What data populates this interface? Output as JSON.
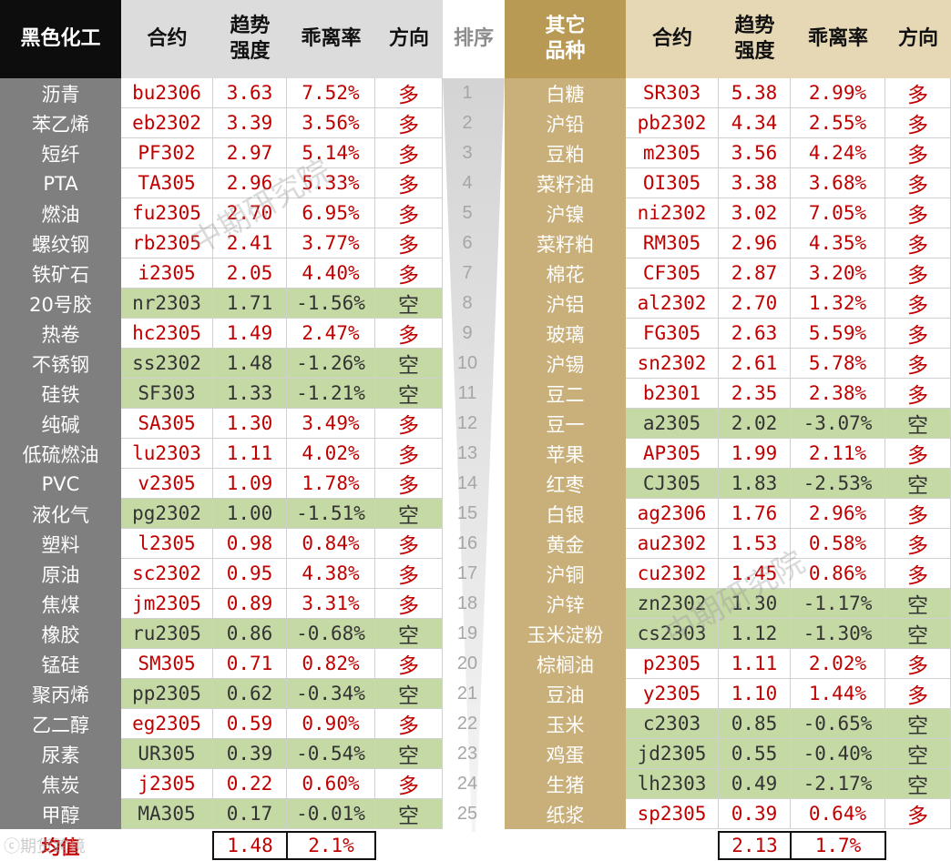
{
  "headers": {
    "left_group": "黑色化工",
    "contract": "合约",
    "trend": "趋势\n强度",
    "deviation": "乖离率",
    "direction": "方向",
    "sort": "排序",
    "right_group": "其它\n品种"
  },
  "left_rows": [
    {
      "name": "沥青",
      "contract": "bu2306",
      "trend": "3.63",
      "dev": "7.52%",
      "dir": "多"
    },
    {
      "name": "苯乙烯",
      "contract": "eb2302",
      "trend": "3.39",
      "dev": "3.56%",
      "dir": "多"
    },
    {
      "name": "短纤",
      "contract": "PF302",
      "trend": "2.97",
      "dev": "5.14%",
      "dir": "多"
    },
    {
      "name": "PTA",
      "contract": "TA305",
      "trend": "2.96",
      "dev": "5.33%",
      "dir": "多"
    },
    {
      "name": "燃油",
      "contract": "fu2305",
      "trend": "2.70",
      "dev": "6.95%",
      "dir": "多"
    },
    {
      "name": "螺纹钢",
      "contract": "rb2305",
      "trend": "2.41",
      "dev": "3.77%",
      "dir": "多"
    },
    {
      "name": "铁矿石",
      "contract": "i2305",
      "trend": "2.05",
      "dev": "4.40%",
      "dir": "多"
    },
    {
      "name": "20号胶",
      "contract": "nr2303",
      "trend": "1.71",
      "dev": "-1.56%",
      "dir": "空"
    },
    {
      "name": "热卷",
      "contract": "hc2305",
      "trend": "1.49",
      "dev": "2.47%",
      "dir": "多"
    },
    {
      "name": "不锈钢",
      "contract": "ss2302",
      "trend": "1.48",
      "dev": "-1.26%",
      "dir": "空"
    },
    {
      "name": "硅铁",
      "contract": "SF303",
      "trend": "1.33",
      "dev": "-1.21%",
      "dir": "空"
    },
    {
      "name": "纯碱",
      "contract": "SA305",
      "trend": "1.30",
      "dev": "3.49%",
      "dir": "多"
    },
    {
      "name": "低硫燃油",
      "contract": "lu2303",
      "trend": "1.11",
      "dev": "4.02%",
      "dir": "多"
    },
    {
      "name": "PVC",
      "contract": "v2305",
      "trend": "1.09",
      "dev": "1.78%",
      "dir": "多"
    },
    {
      "name": "液化气",
      "contract": "pg2302",
      "trend": "1.00",
      "dev": "-1.51%",
      "dir": "空"
    },
    {
      "name": "塑料",
      "contract": "l2305",
      "trend": "0.98",
      "dev": "0.84%",
      "dir": "多"
    },
    {
      "name": "原油",
      "contract": "sc2302",
      "trend": "0.95",
      "dev": "4.38%",
      "dir": "多"
    },
    {
      "name": "焦煤",
      "contract": "jm2305",
      "trend": "0.89",
      "dev": "3.31%",
      "dir": "多"
    },
    {
      "name": "橡胶",
      "contract": "ru2305",
      "trend": "0.86",
      "dev": "-0.68%",
      "dir": "空"
    },
    {
      "name": "锰硅",
      "contract": "SM305",
      "trend": "0.71",
      "dev": "0.82%",
      "dir": "多"
    },
    {
      "name": "聚丙烯",
      "contract": "pp2305",
      "trend": "0.62",
      "dev": "-0.34%",
      "dir": "空"
    },
    {
      "name": "乙二醇",
      "contract": "eg2305",
      "trend": "0.59",
      "dev": "0.90%",
      "dir": "多"
    },
    {
      "name": "尿素",
      "contract": "UR305",
      "trend": "0.39",
      "dev": "-0.54%",
      "dir": "空"
    },
    {
      "name": "焦炭",
      "contract": "j2305",
      "trend": "0.22",
      "dev": "0.60%",
      "dir": "多"
    },
    {
      "name": "甲醇",
      "contract": "MA305",
      "trend": "0.17",
      "dev": "-0.01%",
      "dir": "空"
    }
  ],
  "right_rows": [
    {
      "name": "白糖",
      "contract": "SR303",
      "trend": "5.38",
      "dev": "2.99%",
      "dir": "多"
    },
    {
      "name": "沪铅",
      "contract": "pb2302",
      "trend": "4.34",
      "dev": "2.55%",
      "dir": "多"
    },
    {
      "name": "豆粕",
      "contract": "m2305",
      "trend": "3.56",
      "dev": "4.24%",
      "dir": "多"
    },
    {
      "name": "菜籽油",
      "contract": "OI305",
      "trend": "3.38",
      "dev": "3.68%",
      "dir": "多"
    },
    {
      "name": "沪镍",
      "contract": "ni2302",
      "trend": "3.02",
      "dev": "7.05%",
      "dir": "多"
    },
    {
      "name": "菜籽粕",
      "contract": "RM305",
      "trend": "2.96",
      "dev": "4.35%",
      "dir": "多"
    },
    {
      "name": "棉花",
      "contract": "CF305",
      "trend": "2.87",
      "dev": "3.20%",
      "dir": "多"
    },
    {
      "name": "沪铝",
      "contract": "al2302",
      "trend": "2.70",
      "dev": "1.32%",
      "dir": "多"
    },
    {
      "name": "玻璃",
      "contract": "FG305",
      "trend": "2.63",
      "dev": "5.59%",
      "dir": "多"
    },
    {
      "name": "沪锡",
      "contract": "sn2302",
      "trend": "2.61",
      "dev": "5.78%",
      "dir": "多"
    },
    {
      "name": "豆二",
      "contract": "b2301",
      "trend": "2.35",
      "dev": "2.38%",
      "dir": "多"
    },
    {
      "name": "豆一",
      "contract": "a2305",
      "trend": "2.02",
      "dev": "-3.07%",
      "dir": "空"
    },
    {
      "name": "苹果",
      "contract": "AP305",
      "trend": "1.99",
      "dev": "2.11%",
      "dir": "多"
    },
    {
      "name": "红枣",
      "contract": "CJ305",
      "trend": "1.83",
      "dev": "-2.53%",
      "dir": "空"
    },
    {
      "name": "白银",
      "contract": "ag2306",
      "trend": "1.76",
      "dev": "2.96%",
      "dir": "多"
    },
    {
      "name": "黄金",
      "contract": "au2302",
      "trend": "1.53",
      "dev": "0.58%",
      "dir": "多"
    },
    {
      "name": "沪铜",
      "contract": "cu2302",
      "trend": "1.45",
      "dev": "0.86%",
      "dir": "多"
    },
    {
      "name": "沪锌",
      "contract": "zn2302",
      "trend": "1.30",
      "dev": "-1.17%",
      "dir": "空"
    },
    {
      "name": "玉米淀粉",
      "contract": "cs2303",
      "trend": "1.12",
      "dev": "-1.30%",
      "dir": "空"
    },
    {
      "name": "棕榈油",
      "contract": "p2305",
      "trend": "1.11",
      "dev": "2.02%",
      "dir": "多"
    },
    {
      "name": "豆油",
      "contract": "y2305",
      "trend": "1.10",
      "dev": "1.44%",
      "dir": "多"
    },
    {
      "name": "玉米",
      "contract": "c2303",
      "trend": "0.85",
      "dev": "-0.65%",
      "dir": "空"
    },
    {
      "name": "鸡蛋",
      "contract": "jd2305",
      "trend": "0.55",
      "dev": "-0.40%",
      "dir": "空"
    },
    {
      "name": "生猪",
      "contract": "lh2303",
      "trend": "0.49",
      "dev": "-2.17%",
      "dir": "空"
    },
    {
      "name": "纸浆",
      "contract": "sp2305",
      "trend": "0.39",
      "dev": "0.64%",
      "dir": "多"
    }
  ],
  "ranks": [
    "1",
    "2",
    "3",
    "4",
    "5",
    "6",
    "7",
    "8",
    "9",
    "10",
    "11",
    "12",
    "13",
    "14",
    "15",
    "16",
    "17",
    "18",
    "19",
    "20",
    "21",
    "22",
    "23",
    "24",
    "25"
  ],
  "footer": {
    "label": "均值",
    "left_trend_avg": "1.48",
    "left_dev_avg": "2.1%",
    "right_trend_avg": "2.13",
    "right_dev_avg": "1.7%"
  },
  "watermark": "中期研究院",
  "logo_text": "期货跨境",
  "colors": {
    "long_text": "#c00000",
    "short_bg": "#c5d9a5",
    "left_name_bg": "#7f7f7f",
    "right_name_bg": "#c9b07a",
    "left_header_bg": "#0d0d0d",
    "right_header_bg": "#b99a55"
  }
}
